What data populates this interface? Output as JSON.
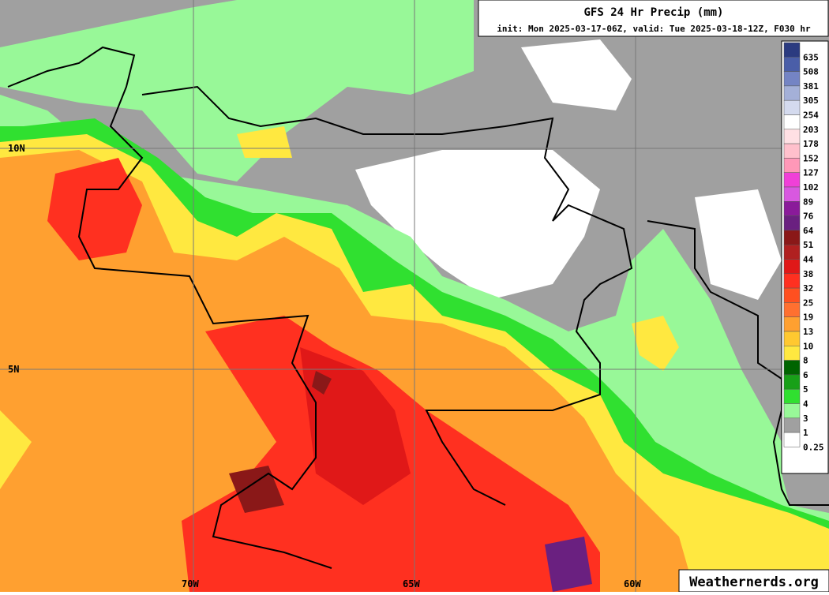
{
  "header": {
    "title": "GFS 24 Hr Precip (mm)",
    "subtitle": "init: Mon 2025-03-17-06Z, valid: Tue 2025-03-18-12Z, F030 hr"
  },
  "legend": {
    "items": [
      {
        "label": "635",
        "color": "#2b3b80"
      },
      {
        "label": "508",
        "color": "#4a5ea8"
      },
      {
        "label": "381",
        "color": "#7484c4"
      },
      {
        "label": "305",
        "color": "#a4b0d8"
      },
      {
        "label": "254",
        "color": "#d4daee"
      },
      {
        "label": "203",
        "color": "#ffffff"
      },
      {
        "label": "178",
        "color": "#ffe0e4"
      },
      {
        "label": "152",
        "color": "#ffc0cc"
      },
      {
        "label": "127",
        "color": "#ff98b8"
      },
      {
        "label": "102",
        "color": "#f040d8"
      },
      {
        "label": "89",
        "color": "#d858e0"
      },
      {
        "label": "76",
        "color": "#8a1a9a"
      },
      {
        "label": "64",
        "color": "#6a2080"
      },
      {
        "label": "51",
        "color": "#8a1818"
      },
      {
        "label": "44",
        "color": "#b02020"
      },
      {
        "label": "38",
        "color": "#e01818"
      },
      {
        "label": "32",
        "color": "#ff3020"
      },
      {
        "label": "25",
        "color": "#ff5020"
      },
      {
        "label": "19",
        "color": "#ff7030"
      },
      {
        "label": "13",
        "color": "#ffa030"
      },
      {
        "label": "10",
        "color": "#ffc830"
      },
      {
        "label": "8",
        "color": "#ffe840"
      },
      {
        "label": "6",
        "color": "#006400"
      },
      {
        "label": "5",
        "color": "#18a018"
      },
      {
        "label": "4",
        "color": "#30e030"
      },
      {
        "label": "3",
        "color": "#98f898"
      },
      {
        "label": "1",
        "color": "#a0a0a0"
      },
      {
        "label": "0.25",
        "color": "#ffffff"
      }
    ]
  },
  "map_labels": {
    "latitudes": [
      "10N",
      "5N"
    ],
    "longitudes": [
      "70W",
      "65W",
      "60W"
    ]
  },
  "watermark": "Weathernerds.org"
}
